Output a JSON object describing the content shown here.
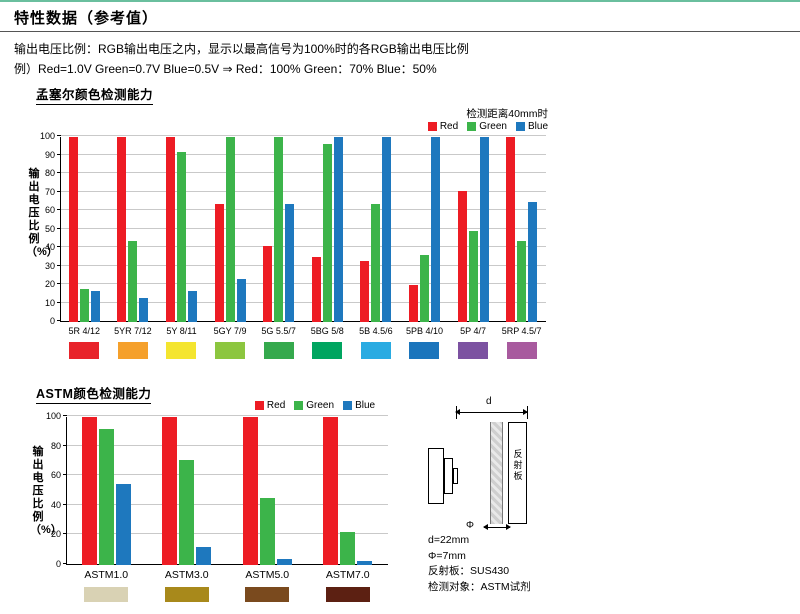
{
  "page": {
    "title": "特性数据（参考值）",
    "intro_line1": "输出电压比例：RGB输出电压之内，显示以最高信号为100%时的各RGB输出电压比例",
    "intro_line2": "例）Red=1.0V Green=0.7V Blue=0.5V ⇒ Red：100% Green：70% Blue：50%"
  },
  "colors": {
    "accent_top": "#6abf9e",
    "red": "#ed1c24",
    "green": "#3cb44a",
    "blue": "#1e78be"
  },
  "sections": {
    "munsell_condition": "检测距离40mm时"
  },
  "diagram": {
    "dim_top": "d",
    "dim_bottom": "Φ",
    "plate_label": "反射板",
    "notes": [
      "d=22mm",
      "Φ=7mm",
      "反射板：SUS430",
      "检测对象：ASTM试剂"
    ]
  },
  "chart_data": [
    {
      "type": "bar",
      "title": "孟塞尔颜色检测能力",
      "categories": [
        "5R 4/12",
        "5YR 7/12",
        "5Y 8/11",
        "5GY 7/9",
        "5G 5.5/7",
        "5BG 5/8",
        "5B 4.5/6",
        "5PB 4/10",
        "5P 4/7",
        "5RP 4.5/7"
      ],
      "series": [
        {
          "name": "Red",
          "color": "#ed1c24",
          "values": [
            100,
            100,
            100,
            64,
            41,
            35,
            33,
            20,
            71,
            100
          ]
        },
        {
          "name": "Green",
          "color": "#3cb44a",
          "values": [
            18,
            44,
            92,
            100,
            100,
            96,
            64,
            36,
            49,
            44
          ]
        },
        {
          "name": "Blue",
          "color": "#1e78be",
          "values": [
            17,
            13,
            17,
            23,
            64,
            100,
            100,
            100,
            100,
            65
          ]
        }
      ],
      "ylabel": "输出电压比例（%）",
      "xlabel": "",
      "ylim": [
        0,
        100
      ],
      "ystep": 10,
      "grid": true,
      "legend_position": "top-right",
      "swatches": [
        "#e8232a",
        "#f5a02b",
        "#f4e52f",
        "#8cc63f",
        "#35a94d",
        "#00a560",
        "#29abe2",
        "#1b75bc",
        "#7c52a1",
        "#a85a9e"
      ]
    },
    {
      "type": "bar",
      "title": "ASTM颜色检测能力",
      "categories": [
        "ASTM1.0",
        "ASTM3.0",
        "ASTM5.0",
        "ASTM7.0"
      ],
      "series": [
        {
          "name": "Red",
          "color": "#ed1c24",
          "values": [
            100,
            100,
            100,
            100
          ]
        },
        {
          "name": "Green",
          "color": "#3cb44a",
          "values": [
            92,
            71,
            45,
            22
          ]
        },
        {
          "name": "Blue",
          "color": "#1e78be",
          "values": [
            55,
            12,
            4,
            3
          ]
        }
      ],
      "ylabel": "输出电压比例（%）",
      "xlabel": "",
      "ylim": [
        0,
        100
      ],
      "ystep": 20,
      "grid": true,
      "legend_position": "top-center",
      "swatches": [
        "#d9d2b4",
        "#a8891b",
        "#7a4a1e",
        "#5c2012"
      ]
    }
  ]
}
